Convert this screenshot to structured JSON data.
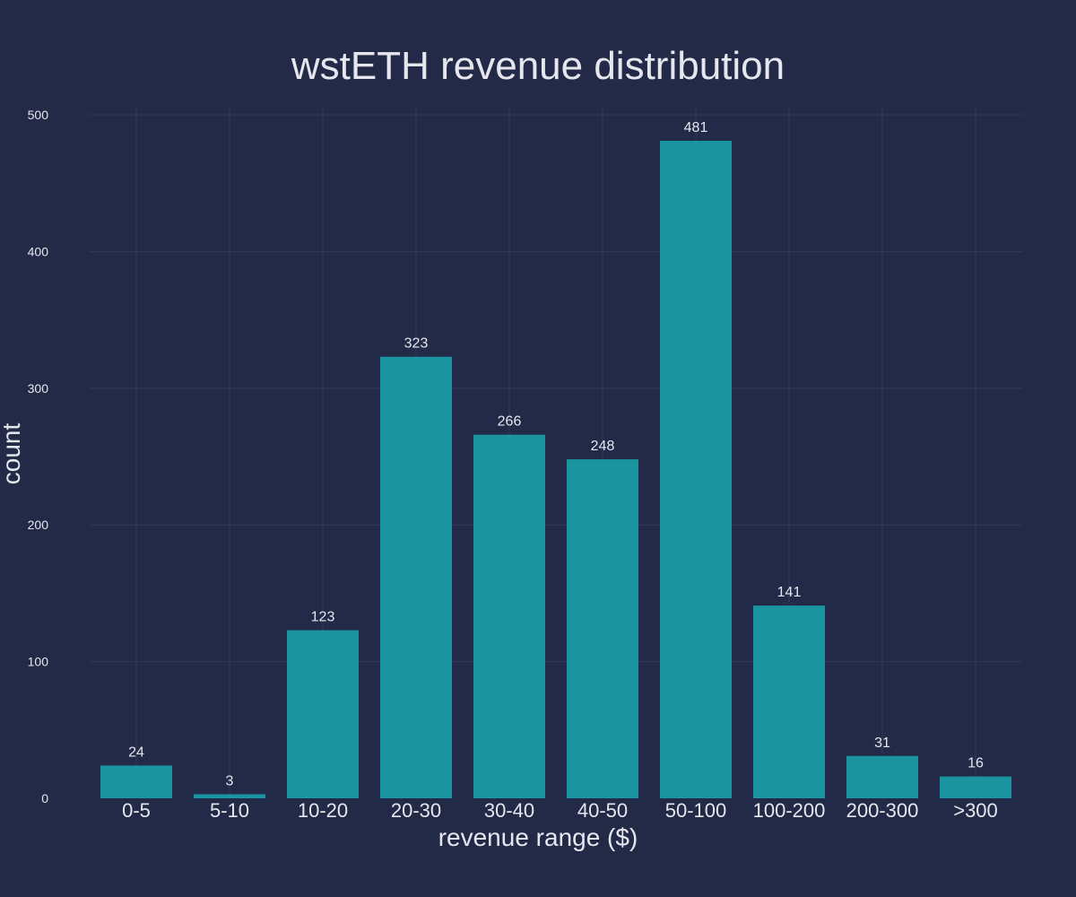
{
  "chart_data": {
    "type": "bar",
    "title": "wstETH revenue distribution",
    "xlabel": "revenue range ($)",
    "ylabel": "count",
    "categories": [
      "0-5",
      "5-10",
      "10-20",
      "20-30",
      "30-40",
      "40-50",
      "50-100",
      "100-200",
      "200-300",
      ">300"
    ],
    "values": [
      24,
      3,
      123,
      323,
      266,
      248,
      481,
      141,
      31,
      16
    ],
    "ylim": [
      0,
      500
    ],
    "yticks": [
      0,
      100,
      200,
      300,
      400,
      500
    ],
    "grid": true,
    "data_labels": true
  },
  "colors": {
    "background": "#222a47",
    "bar": "#1a949f",
    "text": "#e6e6ee",
    "grid": "#2e3a5c"
  }
}
